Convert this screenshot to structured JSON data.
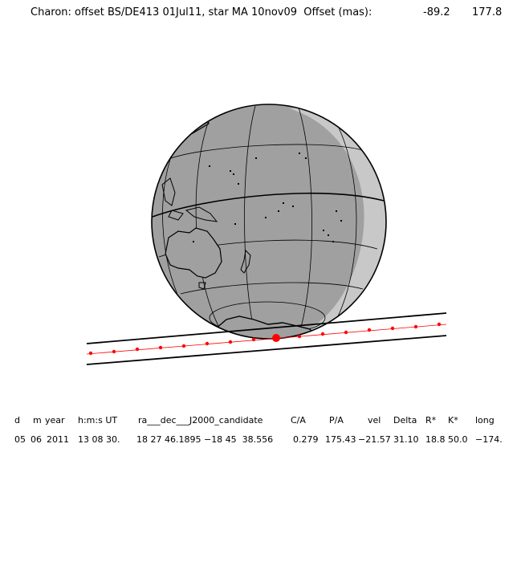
{
  "title": {
    "text": "Charon: offset BS/DE413 01Jul11, star MA 10nov09  Offset (mas):",
    "offset_ra": "-89.2",
    "offset_dec": "177.8"
  },
  "table": {
    "headers": [
      "d",
      "m",
      "year",
      "h:m:s UT",
      "ra___dec___J2000_candidate",
      "C/A",
      "P/A",
      "vel",
      "Delta",
      "R*",
      "K*",
      "long"
    ],
    "values": [
      "05",
      "06",
      "2011",
      "13 08 30.",
      "18 27 46.1895 −18 45  38.556",
      "0.279",
      "175.43",
      "−21.57",
      "31.10",
      "18.8",
      "50.0",
      "−174."
    ]
  },
  "colors": {
    "night": "#a0a0a0",
    "twilight": "#c8c8c8",
    "land_outline": "#000000",
    "track": "#ff0000",
    "chord": "#000000"
  }
}
